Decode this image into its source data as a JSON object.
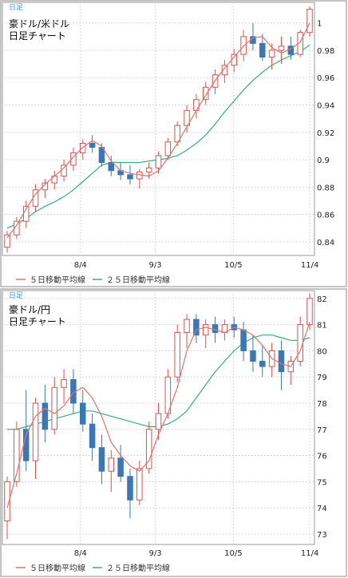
{
  "panels": [
    {
      "tag": "日足",
      "title_line1": "豪ドル/米ドル",
      "title_line2": "日足チャート",
      "legend_ma5": "５日移動平均線",
      "legend_ma25": "２５日移動平均線"
    },
    {
      "tag": "日足",
      "title_line1": "豪ドル/円",
      "title_line2": "日足チャート",
      "legend_ma5": "５日移動平均線",
      "legend_ma25": "２５日移動平均線"
    }
  ],
  "colors": {
    "up": "#d9534f",
    "down": "#3a78b5",
    "ma5": "#e87070",
    "ma25": "#35b07a",
    "frame": "#888888"
  },
  "chart_data": [
    {
      "type": "candlestick",
      "title": "豪ドル/米ドル 日足チャート",
      "x_ticks": [
        "8/4",
        "9/3",
        "10/5",
        "11/4"
      ],
      "y_ticks": [
        "0.84",
        "0.86",
        "0.88",
        "0.9",
        "0.92",
        "0.94",
        "0.96",
        "0.98",
        "1"
      ],
      "ylim": [
        0.83,
        1.015
      ],
      "series": [
        {
          "name": "５日移動平均線",
          "values": [
            0.843,
            0.852,
            0.864,
            0.875,
            0.882,
            0.888,
            0.894,
            0.902,
            0.909,
            0.914,
            0.91,
            0.899,
            0.892,
            0.89,
            0.889,
            0.888,
            0.892,
            0.901,
            0.912,
            0.924,
            0.936,
            0.947,
            0.958,
            0.967,
            0.975,
            0.983,
            0.989,
            0.99,
            0.982,
            0.978,
            0.981,
            0.986,
            1.0
          ]
        },
        {
          "name": "２５日移動平均線",
          "values": [
            0.85,
            0.853,
            0.857,
            0.862,
            0.866,
            0.869,
            0.873,
            0.878,
            0.884,
            0.89,
            0.896,
            0.898,
            0.898,
            0.898,
            0.898,
            0.899,
            0.9,
            0.901,
            0.903,
            0.907,
            0.912,
            0.918,
            0.926,
            0.935,
            0.943,
            0.951,
            0.958,
            0.964,
            0.969,
            0.973,
            0.976,
            0.979,
            0.984
          ]
        }
      ],
      "ohlc": [
        [
          0.836,
          0.848,
          0.832,
          0.845
        ],
        [
          0.845,
          0.858,
          0.842,
          0.855
        ],
        [
          0.855,
          0.87,
          0.85,
          0.866
        ],
        [
          0.866,
          0.882,
          0.862,
          0.878
        ],
        [
          0.878,
          0.886,
          0.872,
          0.883
        ],
        [
          0.883,
          0.892,
          0.878,
          0.888
        ],
        [
          0.888,
          0.9,
          0.884,
          0.896
        ],
        [
          0.896,
          0.909,
          0.892,
          0.905
        ],
        [
          0.905,
          0.915,
          0.9,
          0.912
        ],
        [
          0.912,
          0.918,
          0.905,
          0.909
        ],
        [
          0.909,
          0.912,
          0.895,
          0.898
        ],
        [
          0.898,
          0.903,
          0.888,
          0.892
        ],
        [
          0.892,
          0.898,
          0.885,
          0.889
        ],
        [
          0.889,
          0.896,
          0.882,
          0.886
        ],
        [
          0.886,
          0.893,
          0.879,
          0.891
        ],
        [
          0.891,
          0.898,
          0.886,
          0.894
        ],
        [
          0.894,
          0.906,
          0.89,
          0.903
        ],
        [
          0.903,
          0.916,
          0.9,
          0.913
        ],
        [
          0.913,
          0.928,
          0.91,
          0.925
        ],
        [
          0.925,
          0.94,
          0.92,
          0.936
        ],
        [
          0.936,
          0.948,
          0.93,
          0.944
        ],
        [
          0.944,
          0.957,
          0.94,
          0.953
        ],
        [
          0.953,
          0.966,
          0.948,
          0.962
        ],
        [
          0.962,
          0.973,
          0.956,
          0.969
        ],
        [
          0.969,
          0.981,
          0.964,
          0.977
        ],
        [
          0.977,
          0.995,
          0.972,
          0.99
        ],
        [
          0.99,
          1.0,
          0.98,
          0.985
        ],
        [
          0.985,
          0.992,
          0.972,
          0.975
        ],
        [
          0.975,
          0.985,
          0.966,
          0.98
        ],
        [
          0.98,
          0.99,
          0.97,
          0.983
        ],
        [
          0.983,
          0.99,
          0.973,
          0.977
        ],
        [
          0.977,
          0.995,
          0.975,
          0.993
        ],
        [
          0.993,
          1.012,
          0.99,
          1.01
        ]
      ]
    },
    {
      "type": "candlestick",
      "title": "豪ドル/円 日足チャート",
      "x_ticks": [
        "8/4",
        "9/3",
        "10/5",
        "11/4"
      ],
      "y_ticks": [
        "73",
        "74",
        "75",
        "76",
        "77",
        "78",
        "79",
        "80",
        "81",
        "82"
      ],
      "ylim": [
        72.6,
        82.3
      ],
      "series": [
        {
          "name": "５日移動平均線",
          "values": [
            74.0,
            75.3,
            76.8,
            77.5,
            77.8,
            77.6,
            77.9,
            78.4,
            78.6,
            78.2,
            77.5,
            76.5,
            76.0,
            75.6,
            75.4,
            75.8,
            76.8,
            77.6,
            78.6,
            80.0,
            80.8,
            80.9,
            80.8,
            80.7,
            80.9,
            80.8,
            80.6,
            80.2,
            79.7,
            79.5,
            79.4,
            80.0,
            81.1
          ]
        },
        {
          "name": "２５日移動平均線",
          "values": [
            77.0,
            77.0,
            77.1,
            77.2,
            77.3,
            77.4,
            77.5,
            77.6,
            77.7,
            77.7,
            77.6,
            77.5,
            77.4,
            77.3,
            77.2,
            77.1,
            77.1,
            77.2,
            77.4,
            77.7,
            78.2,
            78.7,
            79.2,
            79.6,
            80.0,
            80.3,
            80.5,
            80.6,
            80.6,
            80.5,
            80.4,
            80.4,
            80.5
          ]
        }
      ],
      "ohlc": [
        [
          73.5,
          75.2,
          72.8,
          75.0
        ],
        [
          75.0,
          77.3,
          74.8,
          77.0
        ],
        [
          77.0,
          78.5,
          75.4,
          75.8
        ],
        [
          75.8,
          78.2,
          75.1,
          78.0
        ],
        [
          78.0,
          78.7,
          76.5,
          77.0
        ],
        [
          77.0,
          79.0,
          76.8,
          78.6
        ],
        [
          78.6,
          79.3,
          78.0,
          78.9
        ],
        [
          78.9,
          79.3,
          77.6,
          78.0
        ],
        [
          78.0,
          78.5,
          76.9,
          77.2
        ],
        [
          77.2,
          77.6,
          75.8,
          76.3
        ],
        [
          76.3,
          76.8,
          74.9,
          75.4
        ],
        [
          75.4,
          76.2,
          74.6,
          75.9
        ],
        [
          75.9,
          76.4,
          75.0,
          75.2
        ],
        [
          75.2,
          75.5,
          73.6,
          74.3
        ],
        [
          74.3,
          75.8,
          74.1,
          75.5
        ],
        [
          75.5,
          77.3,
          75.3,
          77.0
        ],
        [
          77.0,
          78.0,
          76.6,
          77.6
        ],
        [
          77.6,
          79.3,
          77.4,
          79.0
        ],
        [
          79.0,
          81.0,
          78.8,
          80.7
        ],
        [
          80.7,
          81.4,
          80.1,
          81.2
        ],
        [
          81.2,
          81.4,
          80.3,
          80.6
        ],
        [
          80.6,
          81.2,
          80.1,
          81.0
        ],
        [
          81.0,
          81.3,
          80.3,
          80.7
        ],
        [
          80.7,
          81.2,
          80.4,
          81.0
        ],
        [
          81.0,
          81.3,
          80.5,
          80.8
        ],
        [
          80.8,
          81.1,
          79.6,
          80.0
        ],
        [
          80.0,
          80.6,
          79.2,
          79.6
        ],
        [
          79.6,
          80.2,
          79.0,
          79.4
        ],
        [
          79.4,
          80.3,
          79.0,
          80.0
        ],
        [
          80.0,
          80.4,
          78.5,
          79.2
        ],
        [
          79.2,
          79.8,
          78.7,
          79.6
        ],
        [
          79.6,
          81.3,
          79.4,
          81.0
        ],
        [
          81.0,
          82.2,
          80.8,
          82.0
        ]
      ]
    }
  ]
}
